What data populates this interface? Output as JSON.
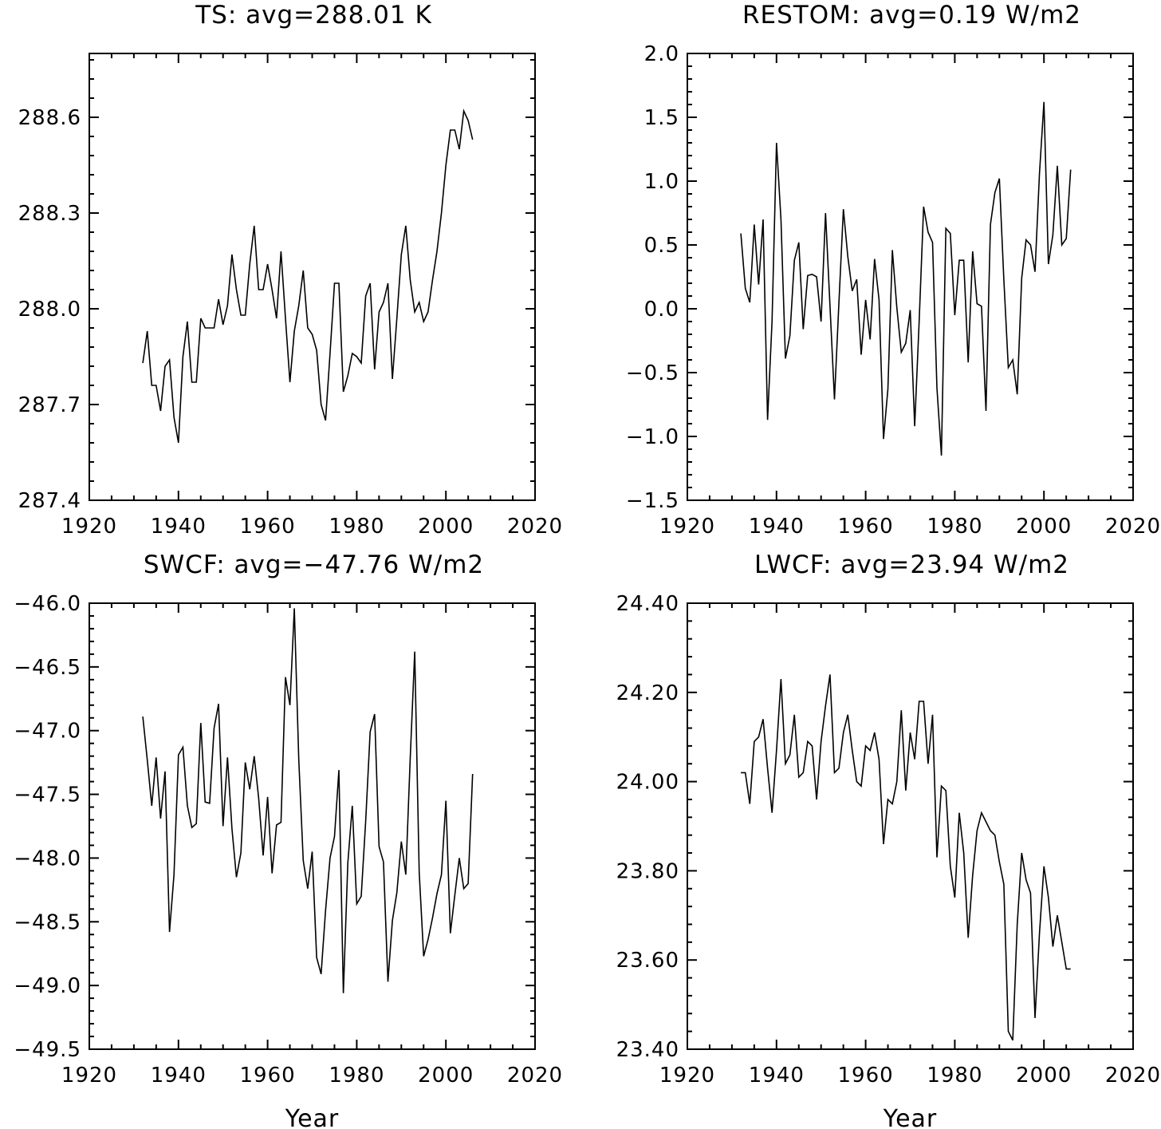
{
  "chart_data": [
    {
      "type": "line",
      "title": "TS: avg=288.01 K",
      "xlabel": "",
      "ylabel": "",
      "xlim": [
        1920,
        2020
      ],
      "ylim": [
        287.4,
        288.8
      ],
      "xticks": [
        1920,
        1940,
        1960,
        1980,
        2000,
        2020
      ],
      "xtick_labels": [
        "1920",
        "1940",
        "1960",
        "1980",
        "2000",
        "2020"
      ],
      "yticks": [
        287.4,
        287.7,
        288.0,
        288.3,
        288.6
      ],
      "ytick_labels": [
        "287.4",
        "287.7",
        "288.0",
        "288.3",
        "288.6"
      ],
      "series": [
        {
          "name": "TS",
          "x": [
            1932,
            1933,
            1934,
            1935,
            1936,
            1937,
            1938,
            1939,
            1940,
            1941,
            1942,
            1943,
            1944,
            1945,
            1946,
            1947,
            1948,
            1949,
            1950,
            1951,
            1952,
            1953,
            1954,
            1955,
            1956,
            1957,
            1958,
            1959,
            1960,
            1961,
            1962,
            1963,
            1964,
            1965,
            1966,
            1967,
            1968,
            1969,
            1970,
            1971,
            1972,
            1973,
            1974,
            1975,
            1976,
            1977,
            1978,
            1979,
            1980,
            1981,
            1982,
            1983,
            1984,
            1985,
            1986,
            1987,
            1988,
            1989,
            1990,
            1991,
            1992,
            1993,
            1994,
            1995,
            1996,
            1997,
            1998,
            1999,
            2000,
            2001,
            2002,
            2003,
            2004,
            2005,
            2006
          ],
          "values": [
            287.83,
            287.93,
            287.76,
            287.76,
            287.68,
            287.82,
            287.84,
            287.66,
            287.58,
            287.85,
            287.96,
            287.77,
            287.77,
            287.97,
            287.94,
            287.94,
            287.94,
            288.03,
            287.95,
            288.01,
            288.17,
            288.06,
            287.98,
            287.98,
            288.14,
            288.26,
            288.06,
            288.06,
            288.14,
            288.06,
            287.97,
            288.18,
            287.97,
            287.77,
            287.93,
            288.01,
            288.12,
            287.94,
            287.92,
            287.87,
            287.7,
            287.65,
            287.86,
            288.08,
            288.08,
            287.74,
            287.79,
            287.86,
            287.85,
            287.83,
            288.04,
            288.08,
            287.81,
            287.99,
            288.02,
            288.08,
            287.78,
            287.97,
            288.17,
            288.26,
            288.09,
            287.99,
            288.02,
            287.96,
            287.99,
            288.09,
            288.18,
            288.3,
            288.45,
            288.56,
            288.56,
            288.5,
            288.62,
            288.59,
            288.53
          ]
        }
      ]
    },
    {
      "type": "line",
      "title": "RESTOM: avg=0.19 W/m2",
      "xlabel": "",
      "ylabel": "",
      "xlim": [
        1920,
        2020
      ],
      "ylim": [
        -1.5,
        2.0
      ],
      "xticks": [
        1920,
        1940,
        1960,
        1980,
        2000,
        2020
      ],
      "xtick_labels": [
        "1920",
        "1940",
        "1960",
        "1980",
        "2000",
        "2020"
      ],
      "yticks": [
        -1.5,
        -1.0,
        -0.5,
        0.0,
        0.5,
        1.0,
        1.5,
        2.0
      ],
      "ytick_labels": [
        "−1.5",
        "−1.0",
        "−0.5",
        "0.0",
        "0.5",
        "1.0",
        "1.5",
        "2.0"
      ],
      "series": [
        {
          "name": "RESTOM",
          "x": [
            1932,
            1933,
            1934,
            1935,
            1936,
            1937,
            1938,
            1939,
            1940,
            1941,
            1942,
            1943,
            1944,
            1945,
            1946,
            1947,
            1948,
            1949,
            1950,
            1951,
            1952,
            1953,
            1954,
            1955,
            1956,
            1957,
            1958,
            1959,
            1960,
            1961,
            1962,
            1963,
            1964,
            1965,
            1966,
            1967,
            1968,
            1969,
            1970,
            1971,
            1972,
            1973,
            1974,
            1975,
            1976,
            1977,
            1978,
            1979,
            1980,
            1981,
            1982,
            1983,
            1984,
            1985,
            1986,
            1987,
            1988,
            1989,
            1990,
            1991,
            1992,
            1993,
            1994,
            1995,
            1996,
            1997,
            1998,
            1999,
            2000,
            2001,
            2002,
            2003,
            2004,
            2005,
            2006
          ],
          "values": [
            0.59,
            0.16,
            0.05,
            0.66,
            0.19,
            0.7,
            -0.87,
            -0.1,
            1.3,
            0.7,
            -0.39,
            -0.21,
            0.38,
            0.52,
            -0.16,
            0.26,
            0.27,
            0.25,
            -0.1,
            0.75,
            0.02,
            -0.71,
            0.05,
            0.78,
            0.41,
            0.14,
            0.23,
            -0.36,
            0.07,
            -0.24,
            0.39,
            0.07,
            -1.02,
            -0.63,
            0.46,
            0.01,
            -0.34,
            -0.27,
            -0.01,
            -0.92,
            -0.1,
            0.8,
            0.6,
            0.52,
            -0.62,
            -1.15,
            0.63,
            0.59,
            -0.05,
            0.38,
            0.38,
            -0.42,
            0.45,
            0.04,
            0.02,
            -0.8,
            0.66,
            0.91,
            1.02,
            0.23,
            -0.46,
            -0.4,
            -0.67,
            0.24,
            0.54,
            0.5,
            0.29,
            1.06,
            1.62,
            0.35,
            0.58,
            1.12,
            0.5,
            0.55,
            1.09
          ]
        }
      ]
    },
    {
      "type": "line",
      "title": "SWCF: avg=−47.76 W/m2",
      "xlabel": "Year",
      "ylabel": "",
      "xlim": [
        1920,
        2020
      ],
      "ylim": [
        -49.5,
        -46.0
      ],
      "xticks": [
        1920,
        1940,
        1960,
        1980,
        2000,
        2020
      ],
      "xtick_labels": [
        "1920",
        "1940",
        "1960",
        "1980",
        "2000",
        "2020"
      ],
      "yticks": [
        -49.5,
        -49.0,
        -48.5,
        -48.0,
        -47.5,
        -47.0,
        -46.5,
        -46.0
      ],
      "ytick_labels": [
        "−49.5",
        "−49.0",
        "−48.5",
        "−48.0",
        "−47.5",
        "−47.0",
        "−46.5",
        "−46.0"
      ],
      "series": [
        {
          "name": "SWCF",
          "x": [
            1932,
            1933,
            1934,
            1935,
            1936,
            1937,
            1938,
            1939,
            1940,
            1941,
            1942,
            1943,
            1944,
            1945,
            1946,
            1947,
            1948,
            1949,
            1950,
            1951,
            1952,
            1953,
            1954,
            1955,
            1956,
            1957,
            1958,
            1959,
            1960,
            1961,
            1962,
            1963,
            1964,
            1965,
            1966,
            1967,
            1968,
            1969,
            1970,
            1971,
            1972,
            1973,
            1974,
            1975,
            1976,
            1977,
            1978,
            1979,
            1980,
            1981,
            1982,
            1983,
            1984,
            1985,
            1986,
            1987,
            1988,
            1989,
            1990,
            1991,
            1992,
            1993,
            1994,
            1995,
            1996,
            1997,
            1998,
            1999,
            2000,
            2001,
            2002,
            2003,
            2004,
            2005,
            2006
          ],
          "values": [
            -46.89,
            -47.23,
            -47.59,
            -47.21,
            -47.69,
            -47.32,
            -48.58,
            -48.13,
            -47.19,
            -47.13,
            -47.59,
            -47.76,
            -47.73,
            -46.94,
            -47.56,
            -47.57,
            -46.98,
            -46.79,
            -47.75,
            -47.21,
            -47.77,
            -48.15,
            -47.96,
            -47.25,
            -47.46,
            -47.2,
            -47.53,
            -47.98,
            -47.52,
            -48.12,
            -47.74,
            -47.72,
            -46.58,
            -46.8,
            -46.04,
            -47.23,
            -48.02,
            -48.24,
            -47.95,
            -48.78,
            -48.91,
            -48.41,
            -48.0,
            -47.83,
            -47.31,
            -49.06,
            -48.04,
            -47.59,
            -48.36,
            -48.3,
            -47.71,
            -47.01,
            -46.87,
            -47.91,
            -48.03,
            -48.97,
            -48.49,
            -48.27,
            -47.87,
            -48.13,
            -47.21,
            -46.38,
            -48.11,
            -48.77,
            -48.64,
            -48.47,
            -48.28,
            -48.13,
            -47.55,
            -48.59,
            -48.29,
            -48.0,
            -48.24,
            -48.2,
            -47.34
          ]
        }
      ]
    },
    {
      "type": "line",
      "title": "LWCF: avg=23.94 W/m2",
      "xlabel": "Year",
      "ylabel": "",
      "xlim": [
        1920,
        2020
      ],
      "ylim": [
        23.4,
        24.4
      ],
      "xticks": [
        1920,
        1940,
        1960,
        1980,
        2000,
        2020
      ],
      "xtick_labels": [
        "1920",
        "1940",
        "1960",
        "1980",
        "2000",
        "2020"
      ],
      "yticks": [
        23.4,
        23.6,
        23.8,
        24.0,
        24.2,
        24.4
      ],
      "ytick_labels": [
        "23.40",
        "23.60",
        "23.80",
        "24.00",
        "24.20",
        "24.40"
      ],
      "series": [
        {
          "name": "LWCF",
          "x": [
            1932,
            1933,
            1934,
            1935,
            1936,
            1937,
            1938,
            1939,
            1940,
            1941,
            1942,
            1943,
            1944,
            1945,
            1946,
            1947,
            1948,
            1949,
            1950,
            1951,
            1952,
            1953,
            1954,
            1955,
            1956,
            1957,
            1958,
            1959,
            1960,
            1961,
            1962,
            1963,
            1964,
            1965,
            1966,
            1967,
            1968,
            1969,
            1970,
            1971,
            1972,
            1973,
            1974,
            1975,
            1976,
            1977,
            1978,
            1979,
            1980,
            1981,
            1982,
            1983,
            1984,
            1985,
            1986,
            1987,
            1988,
            1989,
            1990,
            1991,
            1992,
            1993,
            1994,
            1995,
            1996,
            1997,
            1998,
            1999,
            2000,
            2001,
            2002,
            2003,
            2004,
            2005,
            2006
          ],
          "values": [
            24.02,
            24.02,
            23.95,
            24.09,
            24.1,
            24.14,
            24.03,
            23.93,
            24.07,
            24.23,
            24.04,
            24.06,
            24.15,
            24.01,
            24.02,
            24.09,
            24.08,
            23.96,
            24.09,
            24.17,
            24.24,
            24.02,
            24.03,
            24.11,
            24.15,
            24.07,
            24.0,
            23.99,
            24.08,
            24.07,
            24.11,
            24.05,
            23.86,
            23.96,
            23.95,
            24.0,
            24.16,
            23.98,
            24.11,
            24.05,
            24.18,
            24.18,
            24.04,
            24.15,
            23.83,
            23.99,
            23.98,
            23.81,
            23.74,
            23.93,
            23.84,
            23.65,
            23.79,
            23.89,
            23.93,
            23.91,
            23.89,
            23.88,
            23.82,
            23.77,
            23.44,
            23.42,
            23.68,
            23.84,
            23.78,
            23.75,
            23.47,
            23.66,
            23.81,
            23.74,
            23.63,
            23.7,
            23.64,
            23.58,
            23.58
          ]
        }
      ]
    }
  ]
}
